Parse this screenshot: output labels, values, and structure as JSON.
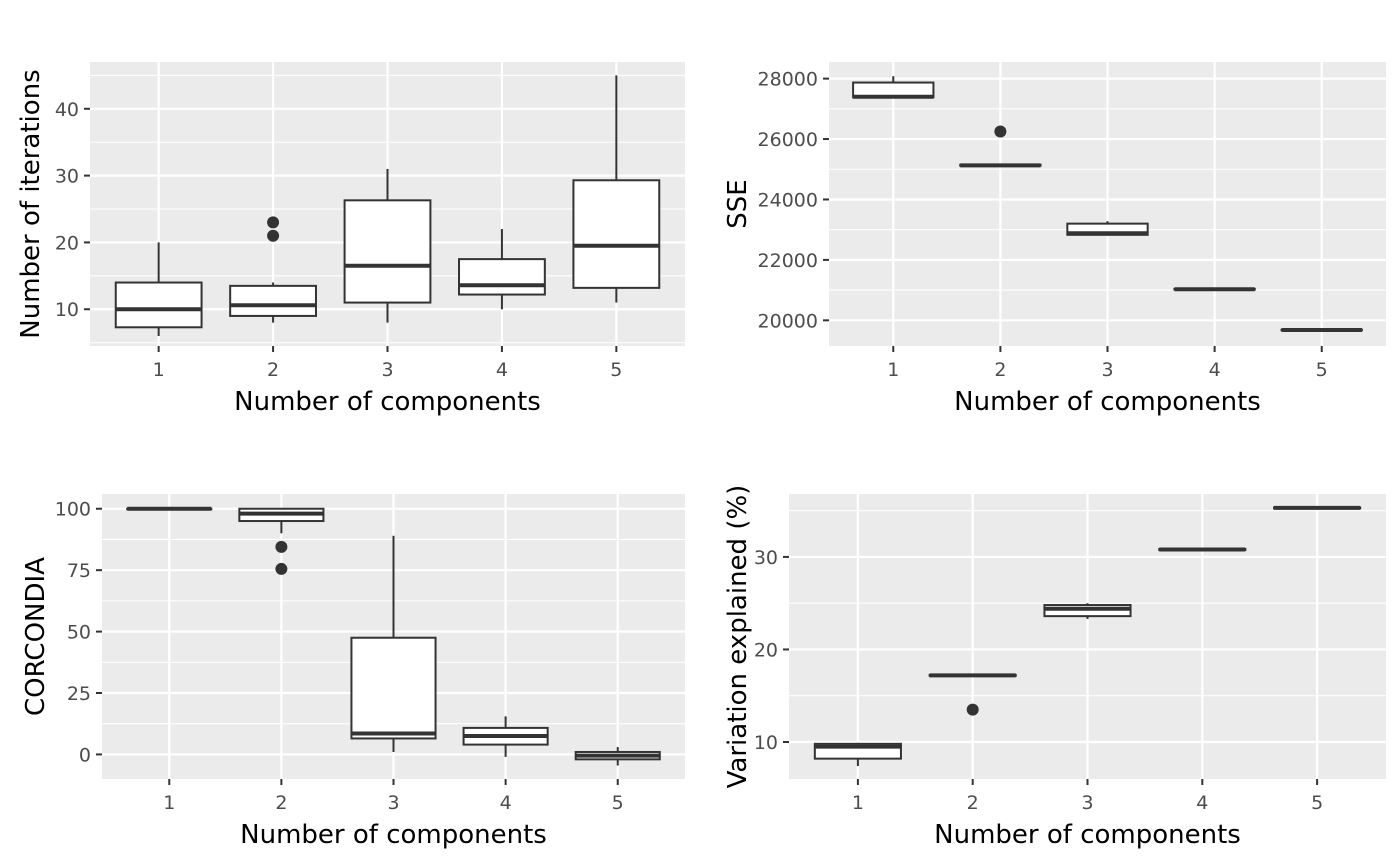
{
  "chart_data": [
    {
      "type": "box",
      "xlabel": "Number of components",
      "ylabel": "Number of iterations",
      "categories": [
        "1",
        "2",
        "3",
        "4",
        "5"
      ],
      "ylim": [
        4.5,
        47
      ],
      "yticks": [
        10,
        20,
        30,
        40
      ],
      "grid": true,
      "boxes": [
        {
          "category": "1",
          "whisker_low": 6,
          "q1": 7.3,
          "median": 10,
          "q3": 14,
          "whisker_high": 20,
          "outliers": []
        },
        {
          "category": "2",
          "whisker_low": 8,
          "q1": 9,
          "median": 10.6,
          "q3": 13.5,
          "whisker_high": 14,
          "outliers": [
            21,
            23
          ]
        },
        {
          "category": "3",
          "whisker_low": 8,
          "q1": 11,
          "median": 16.5,
          "q3": 26.3,
          "whisker_high": 31,
          "outliers": []
        },
        {
          "category": "4",
          "whisker_low": 10,
          "q1": 12.2,
          "median": 13.6,
          "q3": 17.5,
          "whisker_high": 22,
          "outliers": []
        },
        {
          "category": "5",
          "whisker_low": 11,
          "q1": 13.2,
          "median": 19.5,
          "q3": 29.3,
          "whisker_high": 45,
          "outliers": []
        }
      ]
    },
    {
      "type": "box",
      "xlabel": "Number of components",
      "ylabel": "SSE",
      "categories": [
        "1",
        "2",
        "3",
        "4",
        "5"
      ],
      "ylim": [
        19150,
        28550
      ],
      "yticks": [
        20000,
        22000,
        24000,
        26000,
        28000
      ],
      "grid": true,
      "boxes": [
        {
          "category": "1",
          "whisker_low": 27350,
          "q1": 27380,
          "median": 27400,
          "q3": 27870,
          "whisker_high": 28080,
          "outliers": []
        },
        {
          "category": "2",
          "whisker_low": 25100,
          "q1": 25120,
          "median": 25130,
          "q3": 25150,
          "whisker_high": 25160,
          "outliers": [
            26250
          ]
        },
        {
          "category": "3",
          "whisker_low": 22800,
          "q1": 22830,
          "median": 22880,
          "q3": 23200,
          "whisker_high": 23280,
          "outliers": []
        },
        {
          "category": "4",
          "whisker_low": 21010,
          "q1": 21020,
          "median": 21030,
          "q3": 21040,
          "whisker_high": 21050,
          "outliers": []
        },
        {
          "category": "5",
          "whisker_low": 19660,
          "q1": 19670,
          "median": 19680,
          "q3": 19690,
          "whisker_high": 19700,
          "outliers": []
        }
      ]
    },
    {
      "type": "box",
      "xlabel": "Number of components",
      "ylabel": "CORCONDIA",
      "categories": [
        "1",
        "2",
        "3",
        "4",
        "5"
      ],
      "ylim": [
        -10,
        106
      ],
      "yticks": [
        0,
        25,
        50,
        75,
        100
      ],
      "grid": true,
      "boxes": [
        {
          "category": "1",
          "whisker_low": 99.8,
          "q1": 99.8,
          "median": 100,
          "q3": 100,
          "whisker_high": 100,
          "outliers": []
        },
        {
          "category": "2",
          "whisker_low": 90,
          "q1": 95,
          "median": 98,
          "q3": 100,
          "whisker_high": 100,
          "outliers": [
            84.5,
            75.5
          ]
        },
        {
          "category": "3",
          "whisker_low": 1,
          "q1": 6.5,
          "median": 8.5,
          "q3": 47.5,
          "whisker_high": 89,
          "outliers": []
        },
        {
          "category": "4",
          "whisker_low": -1,
          "q1": 4,
          "median": 7.5,
          "q3": 10.8,
          "whisker_high": 15.5,
          "outliers": []
        },
        {
          "category": "5",
          "whisker_low": -4.5,
          "q1": -2,
          "median": -0.5,
          "q3": 1,
          "whisker_high": 3,
          "outliers": []
        }
      ]
    },
    {
      "type": "box",
      "xlabel": "Number of components",
      "ylabel": "Variation explained (%)",
      "categories": [
        "1",
        "2",
        "3",
        "4",
        "5"
      ],
      "ylim": [
        6,
        36.8
      ],
      "yticks": [
        10,
        20,
        30
      ],
      "grid": true,
      "boxes": [
        {
          "category": "1",
          "whisker_low": 7.4,
          "q1": 8.2,
          "median": 9.5,
          "q3": 9.8,
          "whisker_high": 9.9,
          "outliers": []
        },
        {
          "category": "2",
          "whisker_low": 17.1,
          "q1": 17.15,
          "median": 17.2,
          "q3": 17.25,
          "whisker_high": 17.3,
          "outliers": [
            13.5
          ]
        },
        {
          "category": "3",
          "whisker_low": 23.3,
          "q1": 23.6,
          "median": 24.4,
          "q3": 24.8,
          "whisker_high": 25,
          "outliers": []
        },
        {
          "category": "4",
          "whisker_low": 30.7,
          "q1": 30.75,
          "median": 30.8,
          "q3": 30.85,
          "whisker_high": 30.9,
          "outliers": []
        },
        {
          "category": "5",
          "whisker_low": 35.2,
          "q1": 35.25,
          "median": 35.3,
          "q3": 35.35,
          "whisker_high": 35.4,
          "outliers": []
        }
      ]
    }
  ]
}
